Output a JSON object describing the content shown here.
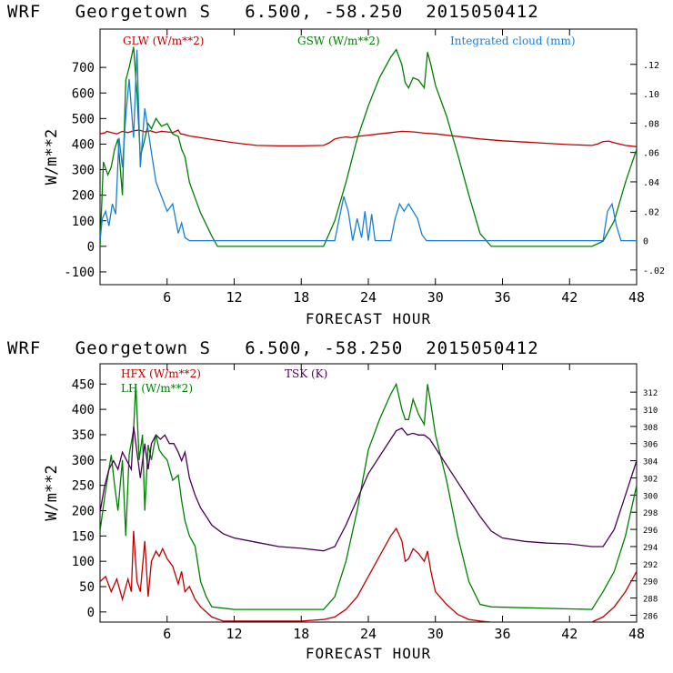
{
  "chart_data": [
    {
      "type": "line",
      "title": "WRF   Georgetown S   6.500, -58.250  2015050412",
      "xlabel": "FORECAST HOUR",
      "ylabel": "W/m**2",
      "xlim": [
        0,
        48
      ],
      "ylim": [
        -150,
        850
      ],
      "x_ticks": [
        6,
        12,
        18,
        24,
        30,
        36,
        42,
        48
      ],
      "y_ticks": [
        -100,
        0,
        100,
        200,
        300,
        400,
        500,
        600,
        700
      ],
      "y2lim": [
        -0.03,
        0.144
      ],
      "y2_ticks": [
        ".12",
        ".10",
        ".08",
        ".06",
        ".04",
        ".02",
        "0",
        "-.02"
      ],
      "y2_tick_values": [
        0.12,
        0.1,
        0.08,
        0.06,
        0.04,
        0.02,
        0,
        -0.02
      ],
      "legend": [
        "GLW (W/m**2)",
        "GSW (W/m**2)",
        "Integrated cloud (mm)"
      ],
      "series": [
        {
          "name": "GLW (W/m**2)",
          "color": "#c00000",
          "axis": "left",
          "x": [
            0,
            0.5,
            0.6,
            1,
            1.5,
            2,
            2.5,
            3,
            3.5,
            4,
            4.5,
            5,
            5.5,
            6,
            6.5,
            7,
            7.2,
            7.5,
            8,
            9,
            10,
            12,
            14,
            16,
            18,
            20,
            20.5,
            21,
            21.5,
            22,
            22.5,
            23,
            24,
            25,
            26,
            27,
            28,
            29,
            30,
            32,
            34,
            36,
            38,
            40,
            42,
            44,
            44.5,
            45,
            45.5,
            46,
            47,
            48
          ],
          "values": [
            440,
            445,
            450,
            445,
            440,
            450,
            445,
            452,
            455,
            448,
            452,
            445,
            450,
            448,
            445,
            455,
            440,
            438,
            432,
            425,
            418,
            405,
            395,
            393,
            393,
            395,
            405,
            420,
            425,
            428,
            425,
            430,
            435,
            440,
            445,
            450,
            448,
            443,
            440,
            430,
            420,
            413,
            408,
            403,
            398,
            395,
            400,
            410,
            412,
            405,
            395,
            390
          ]
        },
        {
          "name": "GSW (W/m**2)",
          "color": "#008000",
          "axis": "left",
          "x": [
            0,
            0.3,
            0.7,
            1,
            1.3,
            1.6,
            2,
            2.3,
            2.6,
            3,
            3.3,
            3.6,
            4,
            4.3,
            4.6,
            5,
            5.5,
            6,
            6.5,
            7,
            7.3,
            7.6,
            8,
            9,
            10,
            10.5,
            20,
            21,
            22,
            23,
            24,
            25,
            26,
            26.5,
            27,
            27.3,
            27.6,
            28,
            28.5,
            29,
            29.3,
            29.6,
            30,
            31,
            32,
            33,
            34,
            35,
            44,
            45,
            46,
            47,
            48
          ],
          "values": [
            0,
            330,
            280,
            310,
            380,
            420,
            200,
            650,
            700,
            780,
            600,
            350,
            420,
            480,
            460,
            500,
            470,
            480,
            440,
            430,
            380,
            350,
            250,
            130,
            40,
            0,
            0,
            100,
            250,
            420,
            550,
            660,
            740,
            770,
            710,
            640,
            620,
            660,
            650,
            620,
            760,
            710,
            630,
            510,
            360,
            200,
            50,
            0,
            0,
            20,
            100,
            250,
            380
          ]
        },
        {
          "name": "Integrated cloud (mm)",
          "color": "#1a7fd4",
          "axis": "right",
          "x": [
            0,
            0.2,
            0.5,
            0.8,
            1.1,
            1.4,
            1.7,
            2,
            2.3,
            2.6,
            3,
            3.3,
            3.6,
            4,
            4.3,
            4.6,
            5,
            5.5,
            6,
            6.5,
            7,
            7.3,
            7.6,
            8,
            8.5,
            21,
            21.4,
            21.8,
            22.2,
            22.6,
            23,
            23.4,
            23.7,
            24,
            24.3,
            24.6,
            25,
            25.5,
            26,
            26.4,
            26.8,
            27.2,
            27.6,
            28,
            28.4,
            28.8,
            29.2,
            29.6,
            30,
            45,
            45.4,
            45.8,
            46.2,
            46.6,
            47,
            48
          ],
          "values": [
            0,
            0.015,
            0.02,
            0.01,
            0.025,
            0.018,
            0.07,
            0.05,
            0.085,
            0.11,
            0.07,
            0.13,
            0.05,
            0.09,
            0.075,
            0.06,
            0.04,
            0.03,
            0.02,
            0.025,
            0.005,
            0.012,
            0.002,
            0,
            0,
            0,
            0.015,
            0.03,
            0.02,
            0,
            0.015,
            0.002,
            0.02,
            0,
            0.018,
            0,
            0,
            0,
            0,
            0.015,
            0.025,
            0.02,
            0.025,
            0.02,
            0.015,
            0.004,
            0,
            0,
            0,
            0,
            0.02,
            0.025,
            0.01,
            0,
            0,
            0
          ]
        }
      ]
    },
    {
      "type": "line",
      "title": "WRF   Georgetown S   6.500, -58.250  2015050412",
      "xlabel": "FORECAST HOUR",
      "ylabel": "W/m**2",
      "xlim": [
        0,
        48
      ],
      "ylim": [
        -20,
        490
      ],
      "x_ticks": [
        6,
        12,
        18,
        24,
        30,
        36,
        42,
        48
      ],
      "y_ticks": [
        0,
        50,
        100,
        150,
        200,
        250,
        300,
        350,
        400,
        450
      ],
      "y2lim": [
        285.2,
        315.3
      ],
      "y2_ticks": [
        286,
        288,
        290,
        292,
        294,
        296,
        298,
        300,
        302,
        304,
        306,
        308,
        310,
        312
      ],
      "legend": [
        "HFX (W/m**2)",
        "LH  (W/m**2)",
        "TSK (K)"
      ],
      "series": [
        {
          "name": "HFX (W/m**2)",
          "color": "#c00000",
          "axis": "left",
          "x": [
            0,
            0.5,
            1,
            1.5,
            2,
            2.5,
            2.8,
            3,
            3.3,
            3.6,
            4,
            4.3,
            4.6,
            5,
            5.3,
            5.6,
            6,
            6.5,
            7,
            7.3,
            7.6,
            8,
            8.5,
            9,
            10,
            11,
            14,
            18,
            20,
            21,
            22,
            23,
            24,
            25,
            26,
            26.5,
            27,
            27.3,
            27.6,
            28,
            28.5,
            29,
            29.3,
            29.6,
            30,
            31,
            32,
            33,
            34,
            35,
            44,
            45,
            46,
            47,
            48
          ],
          "values": [
            60,
            70,
            40,
            65,
            25,
            65,
            40,
            160,
            60,
            40,
            140,
            30,
            100,
            120,
            110,
            125,
            105,
            90,
            55,
            80,
            40,
            50,
            25,
            10,
            -10,
            -18,
            -18,
            -18,
            -15,
            -10,
            5,
            30,
            70,
            110,
            150,
            165,
            140,
            100,
            105,
            125,
            115,
            100,
            120,
            80,
            40,
            15,
            -5,
            -15,
            -18,
            -20,
            -20,
            -10,
            10,
            40,
            80
          ]
        },
        {
          "name": "LH  (W/m**2)",
          "color": "#008000",
          "axis": "left",
          "x": [
            0,
            0.5,
            1,
            1.3,
            1.6,
            2,
            2.3,
            2.6,
            3,
            3.2,
            3.5,
            3.8,
            4,
            4.3,
            4.6,
            5,
            5.3,
            5.6,
            6,
            6.5,
            7,
            7.3,
            7.6,
            8,
            8.5,
            9,
            9.5,
            10,
            12,
            20,
            21,
            22,
            23,
            24,
            25,
            26,
            26.5,
            27,
            27.3,
            27.6,
            28,
            28.5,
            29,
            29.3,
            29.6,
            30,
            31,
            32,
            33,
            34,
            35,
            44,
            45,
            46,
            47,
            48
          ],
          "values": [
            160,
            240,
            310,
            250,
            200,
            300,
            150,
            310,
            360,
            450,
            300,
            350,
            200,
            330,
            300,
            350,
            320,
            310,
            300,
            260,
            270,
            220,
            180,
            150,
            130,
            60,
            30,
            10,
            5,
            5,
            30,
            100,
            200,
            320,
            380,
            430,
            450,
            400,
            380,
            380,
            420,
            390,
            370,
            450,
            410,
            350,
            260,
            150,
            60,
            15,
            10,
            5,
            40,
            80,
            150,
            250
          ]
        },
        {
          "name": "TSK (K)",
          "color": "#4b0055",
          "axis": "right",
          "x": [
            0,
            0.4,
            0.8,
            1.2,
            1.6,
            2,
            2.4,
            2.8,
            3,
            3.3,
            3.6,
            4,
            4.3,
            4.6,
            5,
            5.4,
            5.8,
            6.2,
            6.6,
            7,
            7.3,
            7.6,
            8,
            8.5,
            9,
            9.5,
            10,
            11,
            12,
            14,
            16,
            18,
            20,
            21,
            22,
            23,
            24,
            25,
            26,
            26.5,
            27,
            27.5,
            28,
            28.5,
            29,
            29.5,
            30,
            31,
            32,
            33,
            34,
            35,
            36,
            38,
            40,
            42,
            44,
            45,
            46,
            47,
            48
          ],
          "values": [
            298,
            301,
            303,
            304,
            303,
            305,
            304,
            303,
            308,
            305,
            302,
            306,
            303,
            306,
            307,
            306.5,
            307,
            306,
            306,
            305,
            304,
            305,
            302,
            300,
            298.5,
            297.5,
            296.5,
            295.5,
            295,
            294.5,
            294,
            293.8,
            293.5,
            294,
            296.5,
            299.5,
            302.5,
            304.5,
            306.5,
            307.5,
            307.8,
            307,
            307.2,
            307,
            307,
            306.5,
            305.5,
            303.5,
            301.5,
            299.5,
            297.5,
            295.8,
            295,
            294.6,
            294.4,
            294.3,
            294,
            294,
            296,
            300,
            304
          ]
        }
      ]
    }
  ]
}
